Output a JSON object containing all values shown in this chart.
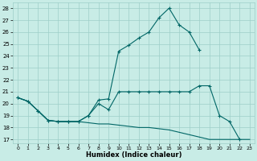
{
  "xlabel": "Humidex (Indice chaleur)",
  "xlim": [
    -0.5,
    23.5
  ],
  "ylim": [
    16.7,
    28.5
  ],
  "yticks": [
    17,
    18,
    19,
    20,
    21,
    22,
    23,
    24,
    25,
    26,
    27,
    28
  ],
  "xticks": [
    0,
    1,
    2,
    3,
    4,
    5,
    6,
    7,
    8,
    9,
    10,
    11,
    12,
    13,
    14,
    15,
    16,
    17,
    18,
    19,
    20,
    21,
    22,
    23
  ],
  "bg_color": "#c8ece6",
  "grid_color": "#9ecfc8",
  "line_color": "#006666",
  "line_top_x": [
    0,
    1,
    2,
    3,
    4,
    5,
    6,
    7,
    8,
    9,
    10,
    11,
    12,
    13,
    14,
    15,
    16,
    17,
    18
  ],
  "line_top_y": [
    20.5,
    20.2,
    19.4,
    18.6,
    18.5,
    18.5,
    18.5,
    19.0,
    20.3,
    20.4,
    24.4,
    24.9,
    25.5,
    26.0,
    27.2,
    28.0,
    26.6,
    26.0,
    24.5
  ],
  "line_mid_x": [
    0,
    1,
    2,
    3,
    4,
    5,
    6,
    7,
    8,
    9,
    10,
    11,
    12,
    13,
    14,
    15,
    16,
    17,
    18,
    19,
    20,
    21,
    22
  ],
  "line_mid_y": [
    20.5,
    20.2,
    19.4,
    18.6,
    18.5,
    18.5,
    18.5,
    19.0,
    20.0,
    19.5,
    21.0,
    21.0,
    21.0,
    21.0,
    21.0,
    21.0,
    21.0,
    21.0,
    21.5,
    21.5,
    19.0,
    18.5,
    17.0
  ],
  "line_bot_x": [
    0,
    1,
    2,
    3,
    4,
    5,
    6,
    7,
    8,
    9,
    10,
    11,
    12,
    13,
    14,
    15,
    16,
    17,
    18,
    19,
    20,
    21,
    22,
    23
  ],
  "line_bot_y": [
    20.5,
    20.2,
    19.4,
    18.6,
    18.5,
    18.5,
    18.5,
    18.4,
    18.3,
    18.3,
    18.2,
    18.1,
    18.0,
    18.0,
    17.9,
    17.8,
    17.6,
    17.4,
    17.2,
    17.0,
    17.0,
    17.0,
    17.0,
    17.0
  ]
}
